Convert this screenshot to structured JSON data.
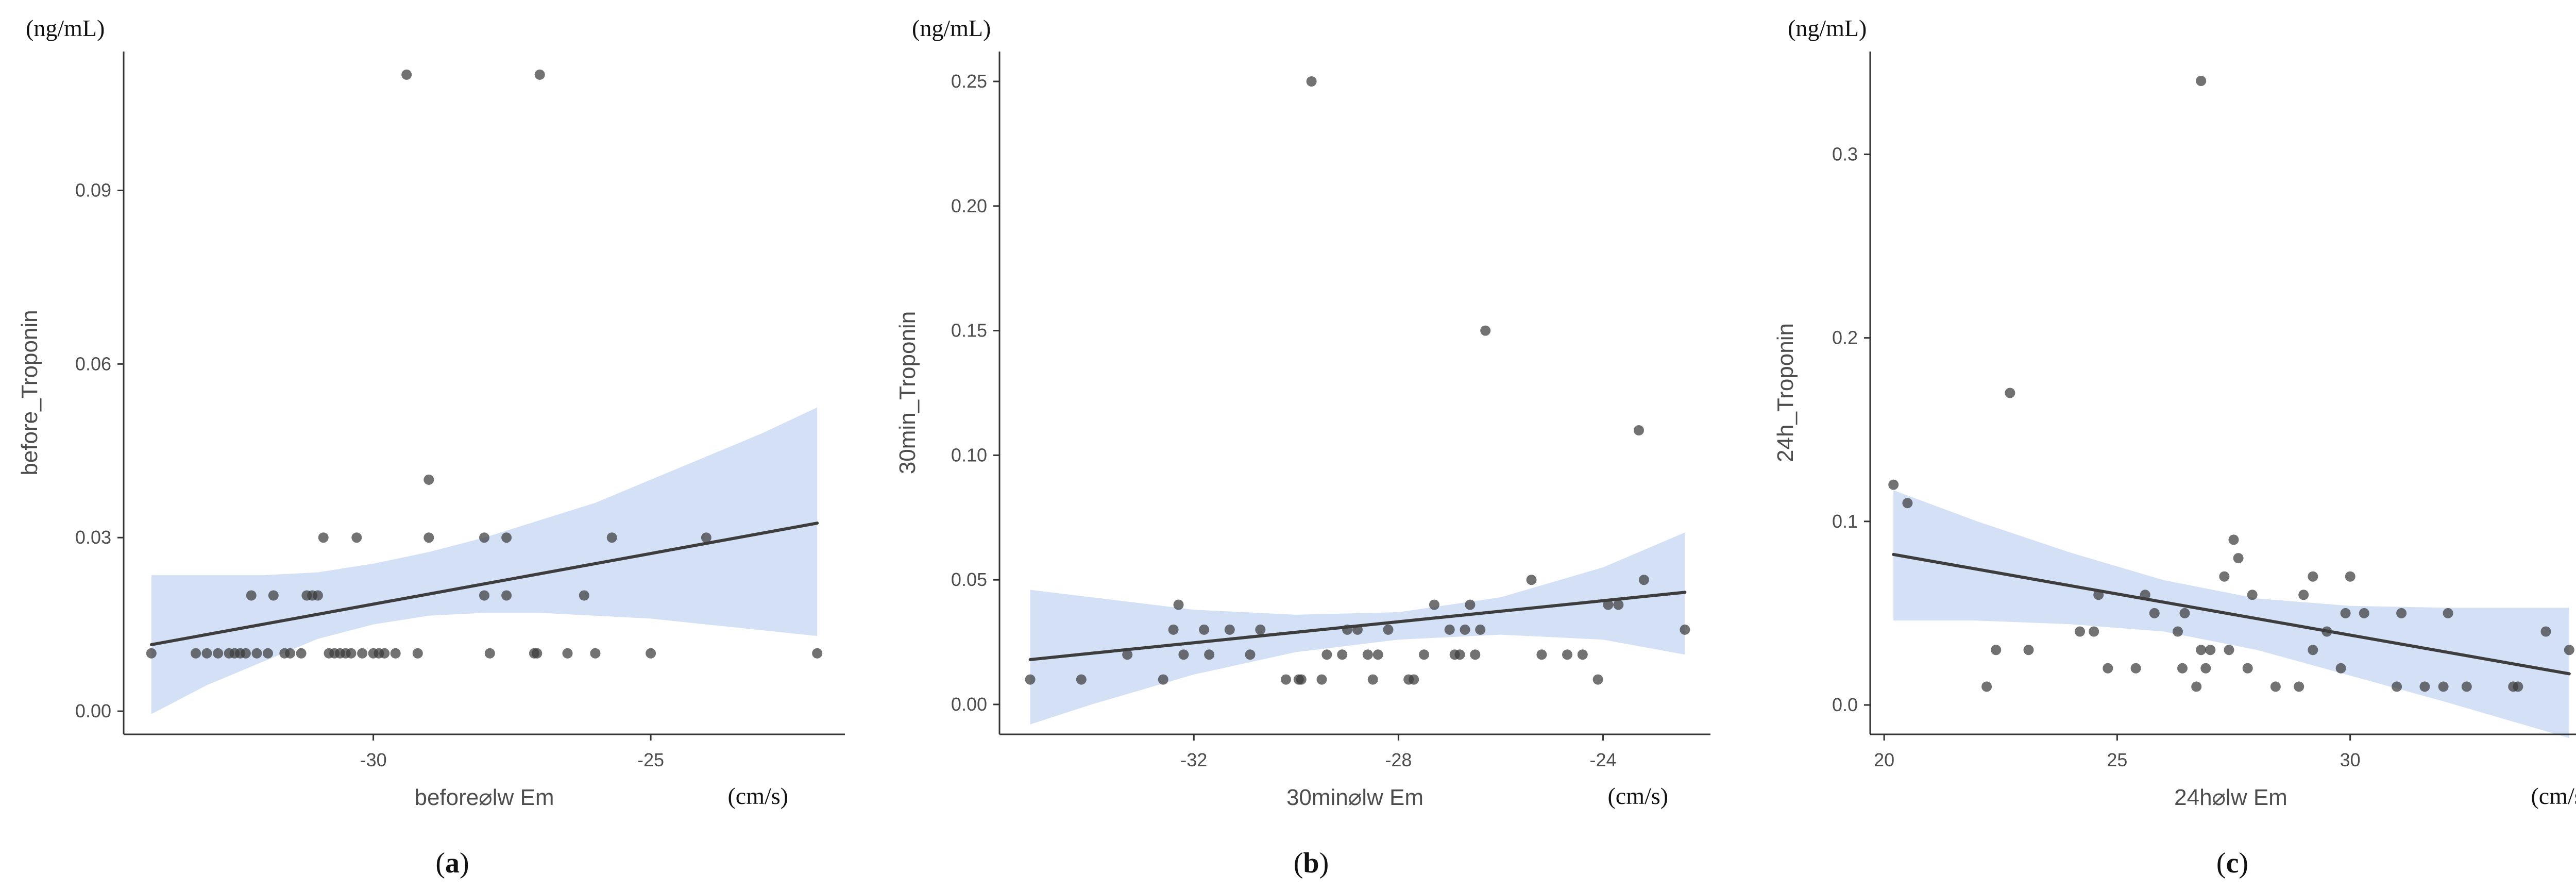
{
  "colors": {
    "point": "#3c3c3c",
    "line": "#3d3d3d",
    "band": "#c7d7f3",
    "axis": "#333333",
    "tick_text": "#4d4d4d",
    "caption_text": "#111111"
  },
  "chart_data": [
    {
      "type": "scatter",
      "panel_label": {
        "open": "(",
        "letter": "a",
        "close": ")"
      },
      "unit_y": "(ng/mL)",
      "unit_x": "(cm/s)",
      "xlabel": "before⌀lw Em",
      "ylabel": "before_Troponin",
      "xlim": [
        -34.5,
        -21.5
      ],
      "ylim": [
        -0.004,
        0.114
      ],
      "xticks": [
        -30,
        -25
      ],
      "xtick_labels": [
        "-30",
        "-25"
      ],
      "yticks": [
        0.0,
        0.03,
        0.06,
        0.09
      ],
      "ytick_labels": [
        "0.00",
        "0.03",
        "0.06",
        "0.09"
      ],
      "fit_line": {
        "x": [
          -34.0,
          -22.0
        ],
        "y": [
          0.0115,
          0.0325
        ]
      },
      "confidence_band": {
        "x": [
          -34.0,
          -33.0,
          -32.0,
          -31.0,
          -30.0,
          -29.0,
          -28.0,
          -27.0,
          -26.0,
          -25.0,
          -24.0,
          -23.0,
          -22.0
        ],
        "upper": [
          0.0235,
          0.0235,
          0.0235,
          0.024,
          0.0255,
          0.0275,
          0.03,
          0.033,
          0.036,
          0.04,
          0.044,
          0.048,
          0.0525
        ],
        "lower": [
          -0.0005,
          0.0045,
          0.0085,
          0.0125,
          0.015,
          0.0165,
          0.017,
          0.017,
          0.0165,
          0.016,
          0.015,
          0.014,
          0.013
        ]
      },
      "points": [
        [
          -34.0,
          0.01
        ],
        [
          -33.2,
          0.01
        ],
        [
          -33.0,
          0.01
        ],
        [
          -32.8,
          0.01
        ],
        [
          -32.6,
          0.01
        ],
        [
          -32.5,
          0.01
        ],
        [
          -32.4,
          0.01
        ],
        [
          -32.3,
          0.01
        ],
        [
          -32.2,
          0.02
        ],
        [
          -32.1,
          0.01
        ],
        [
          -31.9,
          0.01
        ],
        [
          -31.8,
          0.02
        ],
        [
          -31.6,
          0.01
        ],
        [
          -31.5,
          0.01
        ],
        [
          -31.3,
          0.01
        ],
        [
          -31.2,
          0.02
        ],
        [
          -31.1,
          0.02
        ],
        [
          -31.0,
          0.02
        ],
        [
          -30.9,
          0.03
        ],
        [
          -30.8,
          0.01
        ],
        [
          -30.7,
          0.01
        ],
        [
          -30.6,
          0.01
        ],
        [
          -30.5,
          0.01
        ],
        [
          -30.4,
          0.01
        ],
        [
          -30.3,
          0.03
        ],
        [
          -30.2,
          0.01
        ],
        [
          -30.0,
          0.01
        ],
        [
          -29.9,
          0.01
        ],
        [
          -29.8,
          0.01
        ],
        [
          -29.6,
          0.01
        ],
        [
          -29.4,
          0.11
        ],
        [
          -29.2,
          0.01
        ],
        [
          -29.0,
          0.04
        ],
        [
          -29.0,
          0.03
        ],
        [
          -28.0,
          0.03
        ],
        [
          -28.0,
          0.02
        ],
        [
          -27.9,
          0.01
        ],
        [
          -27.6,
          0.03
        ],
        [
          -27.6,
          0.02
        ],
        [
          -27.1,
          0.01
        ],
        [
          -27.05,
          0.01
        ],
        [
          -27.0,
          0.11
        ],
        [
          -26.5,
          0.01
        ],
        [
          -26.2,
          0.02
        ],
        [
          -26.0,
          0.01
        ],
        [
          -25.7,
          0.03
        ],
        [
          -25.0,
          0.01
        ],
        [
          -24.0,
          0.03
        ],
        [
          -22.0,
          0.01
        ]
      ]
    },
    {
      "type": "scatter",
      "panel_label": {
        "open": "(",
        "letter": "b",
        "close": ")"
      },
      "unit_y": "(ng/mL)",
      "unit_x": "(cm/s)",
      "xlabel": "30min⌀lw Em",
      "ylabel": "30min_Troponin",
      "xlim": [
        -35.8,
        -21.9
      ],
      "ylim": [
        -0.012,
        0.262
      ],
      "xticks": [
        -32,
        -28,
        -24
      ],
      "xtick_labels": [
        "-32",
        "-28",
        "-24"
      ],
      "yticks": [
        0.0,
        0.05,
        0.1,
        0.15,
        0.2,
        0.25
      ],
      "ytick_labels": [
        "0.00",
        "0.05",
        "0.10",
        "0.15",
        "0.20",
        "0.25"
      ],
      "fit_line": {
        "x": [
          -35.2,
          -22.4
        ],
        "y": [
          0.018,
          0.045
        ]
      },
      "confidence_band": {
        "x": [
          -35.2,
          -34.0,
          -32.0,
          -30.0,
          -28.0,
          -26.0,
          -24.0,
          -22.4
        ],
        "upper": [
          0.046,
          0.043,
          0.038,
          0.036,
          0.037,
          0.043,
          0.055,
          0.069
        ],
        "lower": [
          -0.008,
          0.0,
          0.012,
          0.021,
          0.026,
          0.028,
          0.026,
          0.02
        ]
      },
      "points": [
        [
          -35.2,
          0.01
        ],
        [
          -34.2,
          0.01
        ],
        [
          -33.3,
          0.02
        ],
        [
          -32.6,
          0.01
        ],
        [
          -32.4,
          0.03
        ],
        [
          -32.3,
          0.04
        ],
        [
          -32.2,
          0.02
        ],
        [
          -31.8,
          0.03
        ],
        [
          -31.7,
          0.02
        ],
        [
          -31.3,
          0.03
        ],
        [
          -30.9,
          0.02
        ],
        [
          -30.7,
          0.03
        ],
        [
          -30.2,
          0.01
        ],
        [
          -29.95,
          0.01
        ],
        [
          -29.9,
          0.01
        ],
        [
          -29.7,
          0.25
        ],
        [
          -29.5,
          0.01
        ],
        [
          -29.4,
          0.02
        ],
        [
          -29.1,
          0.02
        ],
        [
          -29.0,
          0.03
        ],
        [
          -28.8,
          0.03
        ],
        [
          -28.6,
          0.02
        ],
        [
          -28.5,
          0.01
        ],
        [
          -28.4,
          0.02
        ],
        [
          -28.2,
          0.03
        ],
        [
          -27.8,
          0.01
        ],
        [
          -27.7,
          0.01
        ],
        [
          -27.5,
          0.02
        ],
        [
          -27.3,
          0.04
        ],
        [
          -27.0,
          0.03
        ],
        [
          -26.9,
          0.02
        ],
        [
          -26.8,
          0.02
        ],
        [
          -26.7,
          0.03
        ],
        [
          -26.6,
          0.04
        ],
        [
          -26.5,
          0.02
        ],
        [
          -26.4,
          0.03
        ],
        [
          -26.3,
          0.15
        ],
        [
          -25.4,
          0.05
        ],
        [
          -25.2,
          0.02
        ],
        [
          -24.7,
          0.02
        ],
        [
          -24.4,
          0.02
        ],
        [
          -24.1,
          0.01
        ],
        [
          -23.9,
          0.04
        ],
        [
          -23.7,
          0.04
        ],
        [
          -23.3,
          0.11
        ],
        [
          -23.2,
          0.05
        ],
        [
          -22.4,
          0.03
        ]
      ]
    },
    {
      "type": "scatter",
      "panel_label": {
        "open": "(",
        "letter": "c",
        "close": ")"
      },
      "unit_y": "(ng/mL)",
      "unit_x": "(cm/s)",
      "xlabel": "24h⌀lw Em",
      "ylabel": "24h_Troponin",
      "xlim": [
        19.7,
        35.2
      ],
      "ylim": [
        -0.016,
        0.356
      ],
      "xticks": [
        20,
        25,
        30
      ],
      "xtick_labels": [
        "20",
        "25",
        "30"
      ],
      "yticks": [
        0.0,
        0.1,
        0.2,
        0.3
      ],
      "ytick_labels": [
        "0.0",
        "0.1",
        "0.2",
        "0.3"
      ],
      "fit_line": {
        "x": [
          20.2,
          34.7
        ],
        "y": [
          0.082,
          0.017
        ]
      },
      "confidence_band": {
        "x": [
          20.2,
          22.0,
          24.0,
          26.0,
          28.0,
          30.0,
          32.0,
          34.7
        ],
        "upper": [
          0.117,
          0.1,
          0.083,
          0.068,
          0.058,
          0.054,
          0.053,
          0.053
        ],
        "lower": [
          0.046,
          0.046,
          0.044,
          0.04,
          0.03,
          0.016,
          0.002,
          -0.018
        ]
      },
      "points": [
        [
          20.2,
          0.12
        ],
        [
          20.5,
          0.11
        ],
        [
          22.2,
          0.01
        ],
        [
          22.4,
          0.03
        ],
        [
          22.7,
          0.17
        ],
        [
          23.1,
          0.03
        ],
        [
          24.2,
          0.04
        ],
        [
          24.5,
          0.04
        ],
        [
          24.6,
          0.06
        ],
        [
          24.8,
          0.02
        ],
        [
          25.4,
          0.02
        ],
        [
          25.6,
          0.06
        ],
        [
          25.8,
          0.05
        ],
        [
          26.3,
          0.04
        ],
        [
          26.4,
          0.02
        ],
        [
          26.45,
          0.05
        ],
        [
          26.7,
          0.01
        ],
        [
          26.8,
          0.34
        ],
        [
          26.8,
          0.03
        ],
        [
          26.9,
          0.02
        ],
        [
          27.0,
          0.03
        ],
        [
          27.3,
          0.07
        ],
        [
          27.4,
          0.03
        ],
        [
          27.5,
          0.09
        ],
        [
          27.6,
          0.08
        ],
        [
          27.8,
          0.02
        ],
        [
          27.9,
          0.06
        ],
        [
          28.4,
          0.01
        ],
        [
          28.9,
          0.01
        ],
        [
          29.0,
          0.06
        ],
        [
          29.2,
          0.07
        ],
        [
          29.2,
          0.03
        ],
        [
          29.5,
          0.04
        ],
        [
          29.8,
          0.02
        ],
        [
          29.9,
          0.05
        ],
        [
          30.0,
          0.07
        ],
        [
          30.3,
          0.05
        ],
        [
          31.0,
          0.01
        ],
        [
          31.1,
          0.05
        ],
        [
          31.6,
          0.01
        ],
        [
          32.0,
          0.01
        ],
        [
          32.1,
          0.05
        ],
        [
          32.5,
          0.01
        ],
        [
          33.5,
          0.01
        ],
        [
          33.6,
          0.01
        ],
        [
          34.2,
          0.04
        ],
        [
          34.7,
          0.03
        ]
      ]
    }
  ]
}
